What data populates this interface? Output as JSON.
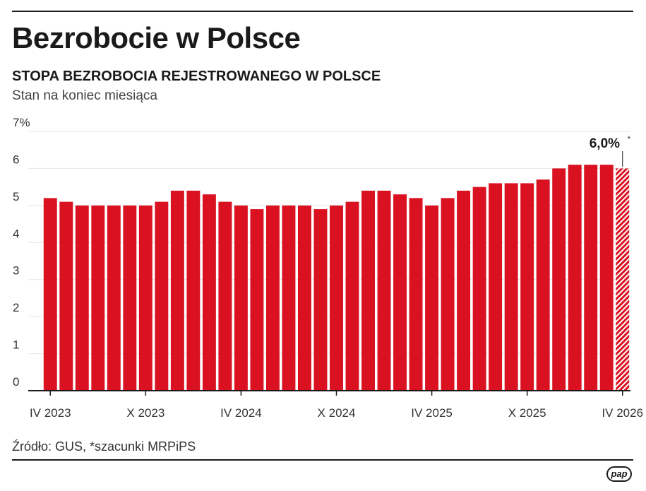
{
  "header": {
    "title": "Bezrobocie w Polsce",
    "subtitle": "STOPA BEZROBOCIA REJESTROWANEGO W POLSCE",
    "note": "Stan na koniec miesiąca"
  },
  "footer": {
    "source": "Źródło: GUS, *szacunki MRPiPS",
    "logo": "pap"
  },
  "colors": {
    "bar": "#d91120",
    "grid": "#e6e6e6",
    "axis": "#1a1a1a"
  },
  "chart_data": {
    "type": "bar",
    "title": "Bezrobocie w Polsce",
    "ylim": [
      0,
      7
    ],
    "yticks": [
      0,
      1,
      2,
      3,
      4,
      5,
      6,
      7
    ],
    "ytick_labels": [
      "0",
      "1",
      "2",
      "3",
      "4",
      "5",
      "6",
      "7%"
    ],
    "grid": true,
    "xtick_labels": [
      "IV 2023",
      "X 2023",
      "IV 2024",
      "X 2024",
      "IV 2025",
      "X 2025",
      "IV 2026"
    ],
    "xtick_indices": [
      0,
      6,
      12,
      18,
      24,
      30,
      36
    ],
    "values": [
      5.2,
      5.1,
      5.0,
      5.0,
      5.0,
      5.0,
      5.0,
      5.1,
      5.4,
      5.4,
      5.3,
      5.1,
      5.0,
      4.9,
      5.0,
      5.0,
      5.0,
      4.9,
      5.0,
      5.1,
      5.4,
      5.4,
      5.3,
      5.2,
      5.0,
      5.2,
      5.4,
      5.5,
      5.6,
      5.6,
      5.6,
      5.7,
      6.0,
      6.1,
      6.1,
      6.1,
      6.0
    ],
    "estimate_indices": [
      36
    ],
    "annotation": {
      "index": 36,
      "text": "6,0%",
      "marker": "*"
    }
  }
}
